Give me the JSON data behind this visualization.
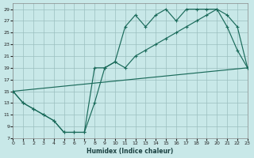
{
  "xlabel": "Humidex (Indice chaleur)",
  "bg_color": "#c8e8e8",
  "line_color": "#1a6a5a",
  "xlim": [
    0,
    23
  ],
  "ylim": [
    7,
    30
  ],
  "xticks": [
    0,
    1,
    2,
    3,
    4,
    5,
    6,
    7,
    8,
    9,
    10,
    11,
    12,
    13,
    14,
    15,
    16,
    17,
    18,
    19,
    20,
    21,
    22,
    23
  ],
  "yticks": [
    7,
    9,
    11,
    13,
    15,
    17,
    19,
    21,
    23,
    25,
    27,
    29
  ],
  "c1x": [
    0,
    1,
    2,
    3,
    4,
    5,
    6,
    7,
    8,
    9,
    10,
    11,
    12,
    13,
    14,
    15,
    16,
    17,
    18,
    19,
    20,
    21,
    22,
    23
  ],
  "c1y": [
    15,
    13,
    12,
    11,
    10,
    8,
    8,
    8,
    13,
    19,
    20,
    26,
    28,
    26,
    28,
    29,
    27,
    29,
    29,
    29,
    29,
    28,
    26,
    19
  ],
  "c2x": [
    0,
    1,
    2,
    3,
    4,
    5,
    6,
    7,
    8,
    9,
    10,
    11,
    12,
    13,
    14,
    15,
    16,
    17,
    18,
    19,
    20,
    21,
    22,
    23
  ],
  "c2y": [
    15,
    13,
    12,
    11,
    10,
    8,
    8,
    8,
    19,
    19,
    20,
    19,
    21,
    22,
    23,
    24,
    25,
    26,
    27,
    28,
    29,
    26,
    22,
    19
  ],
  "c3x": [
    0,
    23
  ],
  "c3y": [
    15,
    19
  ]
}
